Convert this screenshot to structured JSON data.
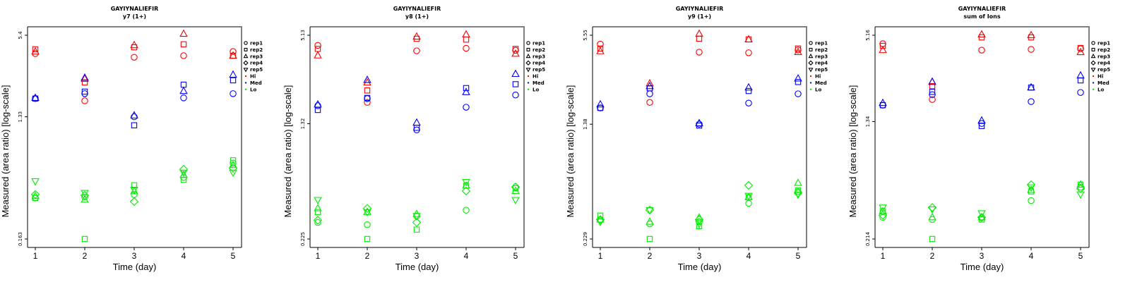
{
  "colors": {
    "Hi": "#ff0000",
    "Med": "#0000ff",
    "Lo": "#00ee00",
    "axis": "#000000",
    "frame": "#808080"
  },
  "legend": {
    "entries": [
      {
        "label": "rep1",
        "marker": "circle"
      },
      {
        "label": "rep2",
        "marker": "square"
      },
      {
        "label": "rep3",
        "marker": "triangle-up"
      },
      {
        "label": "rep4",
        "marker": "diamond"
      },
      {
        "label": "rep5",
        "marker": "triangle-down"
      },
      {
        "label": "Hi",
        "marker": "dot",
        "color": "Hi"
      },
      {
        "label": "Med",
        "marker": "dot",
        "color": "Med"
      },
      {
        "label": "Lo",
        "marker": "dot",
        "color": "Lo"
      }
    ],
    "placement": "right"
  },
  "chart_data": [
    {
      "type": "scatter",
      "title": "GAYIYNALIEFIR",
      "subtitle": "y7 (1+)",
      "xlabel": "Time (day)",
      "ylabel": "Measured (area ratio) [log-scale]",
      "yscale": "log",
      "x_ticks": [
        "1",
        "2",
        "3",
        "4",
        "5"
      ],
      "y_ticks": [
        "0.163",
        "1.33",
        "5.4"
      ],
      "y_tick_values": [
        0.163,
        1.33,
        5.4
      ],
      "x": [
        1,
        2,
        3,
        4,
        5
      ],
      "series": [
        {
          "group": "Hi",
          "rep": "rep1",
          "values": [
            3.94,
            1.75,
            3.7,
            3.8,
            4.08
          ]
        },
        {
          "group": "Hi",
          "rep": "rep2",
          "values": [
            4.24,
            2.4,
            4.39,
            4.62,
            3.8
          ]
        },
        {
          "group": "Hi",
          "rep": "rep3",
          "values": [
            4.08,
            2.55,
            4.55,
            5.53,
            3.8
          ]
        },
        {
          "group": "Med",
          "rep": "rep1",
          "values": [
            1.82,
            1.98,
            1.33,
            1.84,
            1.98
          ]
        },
        {
          "group": "Med",
          "rep": "rep2",
          "values": [
            1.82,
            2.05,
            1.15,
            2.31,
            2.49
          ]
        },
        {
          "group": "Med",
          "rep": "rep3",
          "values": [
            1.84,
            2.6,
            1.36,
            2.07,
            2.74
          ]
        },
        {
          "group": "Lo",
          "rep": "rep1",
          "values": [
            0.33,
            0.335,
            0.35,
            0.47,
            0.6
          ]
        },
        {
          "group": "Lo",
          "rep": "rep2",
          "values": [
            0.33,
            0.163,
            0.41,
            0.45,
            0.63
          ]
        },
        {
          "group": "Lo",
          "rep": "rep3",
          "values": [
            0.34,
            0.32,
            0.37,
            0.49,
            0.58
          ]
        },
        {
          "group": "Lo",
          "rep": "rep4",
          "values": [
            0.35,
            0.345,
            0.31,
            0.54,
            0.55
          ]
        },
        {
          "group": "Lo",
          "rep": "rep5",
          "values": [
            0.44,
            0.36,
            0.38,
            0.51,
            0.51
          ]
        }
      ]
    },
    {
      "type": "scatter",
      "title": "GAYIYNALIEFIR",
      "subtitle": "y8 (1+)",
      "xlabel": "Time (day)",
      "ylabel": "Measured (area ratio) [log-scale]",
      "yscale": "log",
      "x_ticks": [
        "1",
        "2",
        "3",
        "4",
        "5"
      ],
      "y_ticks": [
        "0.225",
        "1.32",
        "5.13"
      ],
      "y_tick_values": [
        0.225,
        1.32,
        5.13
      ],
      "x": [
        1,
        2,
        3,
        4,
        5
      ],
      "series": [
        {
          "group": "Hi",
          "rep": "rep1",
          "values": [
            4.39,
            1.83,
            4.04,
            4.2,
            4.07
          ]
        },
        {
          "group": "Hi",
          "rep": "rep2",
          "values": [
            4.16,
            2.2,
            4.86,
            4.8,
            4.16
          ]
        },
        {
          "group": "Hi",
          "rep": "rep3",
          "values": [
            3.76,
            2.48,
            5.02,
            5.19,
            3.86
          ]
        },
        {
          "group": "Med",
          "rep": "rep1",
          "values": [
            1.74,
            1.94,
            1.2,
            1.7,
            2.05
          ]
        },
        {
          "group": "Med",
          "rep": "rep2",
          "values": [
            1.63,
            1.96,
            1.24,
            2.28,
            2.42
          ]
        },
        {
          "group": "Med",
          "rep": "rep3",
          "values": [
            1.77,
            2.58,
            1.34,
            2.14,
            2.83
          ]
        },
        {
          "group": "Lo",
          "rep": "rep1",
          "values": [
            0.29,
            0.28,
            0.32,
            0.35,
            0.5
          ]
        },
        {
          "group": "Lo",
          "rep": "rep2",
          "values": [
            0.34,
            0.225,
            0.26,
            0.51,
            0.49
          ]
        },
        {
          "group": "Lo",
          "rep": "rep3",
          "values": [
            0.36,
            0.34,
            0.33,
            0.51,
            0.47
          ]
        },
        {
          "group": "Lo",
          "rep": "rep4",
          "values": [
            0.3,
            0.36,
            0.29,
            0.47,
            0.5
          ]
        },
        {
          "group": "Lo",
          "rep": "rep5",
          "values": [
            0.41,
            0.34,
            0.32,
            0.54,
            0.41
          ]
        }
      ]
    },
    {
      "type": "scatter",
      "title": "GAYIYNALIEFIR",
      "subtitle": "y9 (1+)",
      "xlabel": "Time (day)",
      "ylabel": "Measured (area ratio) [log-scale]",
      "yscale": "log",
      "x_ticks": [
        "1",
        "2",
        "3",
        "4",
        "5"
      ],
      "y_ticks": [
        "0.229",
        "1.38",
        "5.55"
      ],
      "y_tick_values": [
        0.229,
        1.38,
        5.55
      ],
      "x": [
        1,
        2,
        3,
        4,
        5
      ],
      "series": [
        {
          "group": "Hi",
          "rep": "rep1",
          "values": [
            4.83,
            1.94,
            4.26,
            4.22,
            4.41
          ]
        },
        {
          "group": "Hi",
          "rep": "rep2",
          "values": [
            4.51,
            2.42,
            5.26,
            5.2,
            4.51
          ]
        },
        {
          "group": "Hi",
          "rep": "rep3",
          "values": [
            4.32,
            2.61,
            5.67,
            5.2,
            4.26
          ]
        },
        {
          "group": "Med",
          "rep": "rep1",
          "values": [
            1.78,
            2.22,
            1.38,
            1.92,
            2.22
          ]
        },
        {
          "group": "Med",
          "rep": "rep2",
          "values": [
            1.78,
            2.42,
            1.35,
            2.32,
            2.67
          ]
        },
        {
          "group": "Med",
          "rep": "rep3",
          "values": [
            1.88,
            2.5,
            1.4,
            2.45,
            2.82
          ]
        },
        {
          "group": "Lo",
          "rep": "rep1",
          "values": [
            0.31,
            0.29,
            0.3,
            0.4,
            0.48
          ]
        },
        {
          "group": "Lo",
          "rep": "rep2",
          "values": [
            0.33,
            0.229,
            0.28,
            0.44,
            0.49
          ]
        },
        {
          "group": "Lo",
          "rep": "rep3",
          "values": [
            0.31,
            0.3,
            0.32,
            0.44,
            0.55
          ]
        },
        {
          "group": "Lo",
          "rep": "rep4",
          "values": [
            0.31,
            0.36,
            0.31,
            0.53,
            0.47
          ]
        },
        {
          "group": "Lo",
          "rep": "rep5",
          "values": [
            0.3,
            0.36,
            0.29,
            0.45,
            0.46
          ]
        }
      ]
    },
    {
      "type": "scatter",
      "title": "GAYIYNALIEFIR",
      "subtitle": "sum of Ions",
      "xlabel": "Time (day)",
      "ylabel": "Measured (area ratio) [log-scale]",
      "yscale": "log",
      "x_ticks": [
        "1",
        "2",
        "3",
        "4",
        "5"
      ],
      "y_ticks": [
        "0.214",
        "1.34",
        "5.16"
      ],
      "y_tick_values": [
        0.214,
        1.34,
        5.16
      ],
      "x": [
        1,
        2,
        3,
        4,
        5
      ],
      "series": [
        {
          "group": "Hi",
          "rep": "rep1",
          "values": [
            4.52,
            1.89,
            4.09,
            4.14,
            4.18
          ]
        },
        {
          "group": "Hi",
          "rep": "rep2",
          "values": [
            4.37,
            2.33,
            4.99,
            4.99,
            4.23
          ]
        },
        {
          "group": "Hi",
          "rep": "rep3",
          "values": [
            4.09,
            2.49,
            5.22,
            5.16,
            3.96
          ]
        },
        {
          "group": "Med",
          "rep": "rep1",
          "values": [
            1.73,
            2.04,
            1.3,
            1.83,
            2.11
          ]
        },
        {
          "group": "Med",
          "rep": "rep2",
          "values": [
            1.73,
            2.13,
            1.25,
            2.28,
            2.55
          ]
        },
        {
          "group": "Med",
          "rep": "rep3",
          "values": [
            1.79,
            2.49,
            1.36,
            2.28,
            2.75
          ]
        },
        {
          "group": "Lo",
          "rep": "rep1",
          "values": [
            0.3,
            0.29,
            0.3,
            0.39,
            0.48
          ]
        },
        {
          "group": "Lo",
          "rep": "rep2",
          "values": [
            0.33,
            0.214,
            0.29,
            0.45,
            0.5
          ]
        },
        {
          "group": "Lo",
          "rep": "rep3",
          "values": [
            0.33,
            0.3,
            0.3,
            0.46,
            0.5
          ]
        },
        {
          "group": "Lo",
          "rep": "rep4",
          "values": [
            0.31,
            0.35,
            0.3,
            0.5,
            0.47
          ]
        },
        {
          "group": "Lo",
          "rep": "rep5",
          "values": [
            0.35,
            0.34,
            0.32,
            0.48,
            0.43
          ]
        }
      ]
    }
  ]
}
